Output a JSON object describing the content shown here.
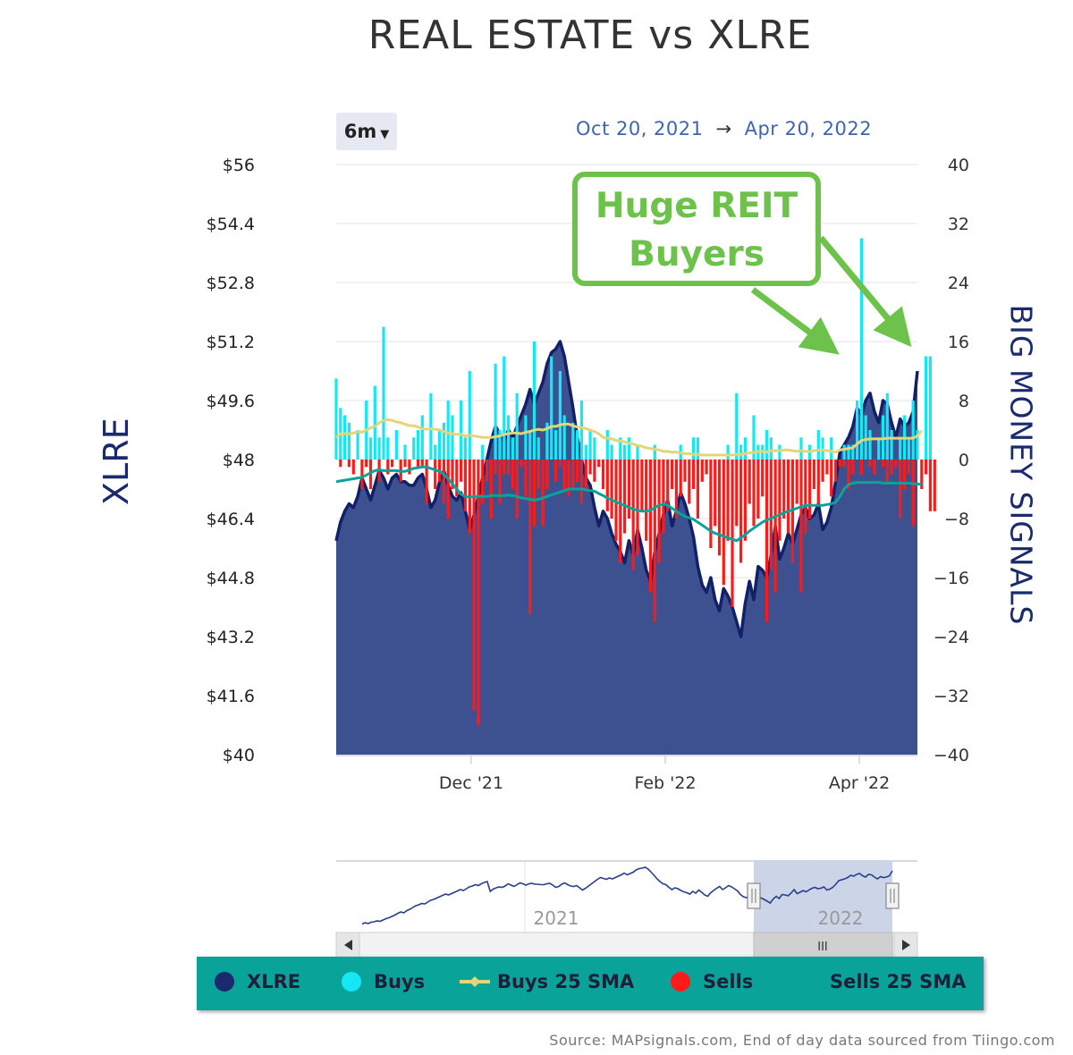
{
  "title": "REAL ESTATE vs XLRE",
  "range_selector": {
    "label": "6m"
  },
  "date_range": {
    "from": "Oct 20, 2021",
    "arrow": "→",
    "to": "Apr 20, 2022"
  },
  "callout": {
    "line1": "Huge REIT",
    "line2": "Buyers"
  },
  "navigator": {
    "year_labels": [
      "2021",
      "2022"
    ],
    "handle_glyph": "III"
  },
  "legend": [
    {
      "label": "XLRE",
      "color": "#1a2a6c"
    },
    {
      "label": "Buys",
      "color": "#14e8f5"
    },
    {
      "label": "Buys 25 SMA",
      "color": "#e2d57a"
    },
    {
      "label": "Sells",
      "color": "#ff1a1a"
    },
    {
      "label": "Sells 25 SMA",
      "color": "#0aa39a"
    }
  ],
  "source": "Source: MAPsignals.com, End of day data sourced from Tiingo.com",
  "chart_data": {
    "type": "area",
    "title": "REAL ESTATE vs XLRE",
    "left_axis": {
      "label": "XLRE",
      "ylim": [
        40,
        56
      ],
      "ticks": [
        "$56",
        "$54.4",
        "$52.8",
        "$51.2",
        "$49.6",
        "$48",
        "$46.4",
        "$44.8",
        "$43.2",
        "$41.6",
        "$40"
      ]
    },
    "right_axis": {
      "label": "BIG MONEY SIGNALS",
      "ylim": [
        -40,
        40
      ],
      "ticks": [
        "40",
        "32",
        "24",
        "16",
        "8",
        "0",
        "−8",
        "−16",
        "−24",
        "−32",
        "−40"
      ]
    },
    "x_ticks": [
      "Dec '21",
      "Feb '22",
      "Apr '22"
    ],
    "grid": true,
    "legend_position": "bottom",
    "series": [
      {
        "name": "XLRE",
        "axis": "left",
        "color": "#1a2a6c",
        "values": [
          45.8,
          46.3,
          46.6,
          46.8,
          46.7,
          47.0,
          47.5,
          47.2,
          46.9,
          47.3,
          47.7,
          47.5,
          47.2,
          47.5,
          47.6,
          47.4,
          47.4,
          47.3,
          47.3,
          47.5,
          47.6,
          47.2,
          46.7,
          46.9,
          47.4,
          47.7,
          47.3,
          47.0,
          46.9,
          47.1,
          46.6,
          46.1,
          46.5,
          47.0,
          47.5,
          48.0,
          48.5,
          48.9,
          48.7,
          48.5,
          48.8,
          48.6,
          48.9,
          49.2,
          49.5,
          49.9,
          49.5,
          49.8,
          50.1,
          50.6,
          50.9,
          51.0,
          51.2,
          50.8,
          50.1,
          49.4,
          48.6,
          48.0,
          47.5,
          47.3,
          46.7,
          46.2,
          46.6,
          46.4,
          46.0,
          45.7,
          45.5,
          45.2,
          45.8,
          45.4,
          46.1,
          45.6,
          45.0,
          44.7,
          45.5,
          46.0,
          46.5,
          46.9,
          46.2,
          46.6,
          47.1,
          46.8,
          46.4,
          45.9,
          45.1,
          44.6,
          44.4,
          44.8,
          44.2,
          43.9,
          44.5,
          44.3,
          44.0,
          43.6,
          43.2,
          44.1,
          44.7,
          44.2,
          45.1,
          45.0,
          44.8,
          45.4,
          46.2,
          45.3,
          45.6,
          46.0,
          45.7,
          46.1,
          46.5,
          46.7,
          46.4,
          46.5,
          46.8,
          46.1,
          46.3,
          46.7,
          47.4,
          48.2,
          48.4,
          48.6,
          48.9,
          49.4,
          49.2,
          49.6,
          49.8,
          49.3,
          49.0,
          49.6,
          49.5,
          49.0,
          48.6,
          49.1,
          48.9,
          49.0,
          49.3,
          50.4
        ]
      },
      {
        "name": "Buys",
        "axis": "right",
        "color": "#14e8f5",
        "values": [
          11,
          7,
          6,
          5,
          0,
          4,
          0,
          8,
          3,
          10,
          3,
          18,
          3,
          0,
          4,
          0,
          2,
          0,
          3,
          4,
          6,
          0,
          9,
          2,
          4,
          5,
          8,
          6,
          0,
          8,
          3,
          12,
          0,
          0,
          2,
          0,
          0,
          13,
          4,
          14,
          6,
          3,
          9,
          0,
          6,
          4,
          16,
          3,
          0,
          5,
          14,
          4,
          12,
          6,
          0,
          5,
          4,
          8,
          2,
          4,
          3,
          0,
          0,
          4,
          2,
          0,
          3,
          2,
          3,
          0,
          2,
          0,
          0,
          0,
          2,
          0,
          0,
          0,
          0,
          0,
          2,
          0,
          0,
          3,
          3,
          0,
          0,
          0,
          0,
          0,
          0,
          2,
          0,
          9,
          2,
          3,
          0,
          6,
          2,
          2,
          4,
          3,
          0,
          2,
          0,
          0,
          0,
          0,
          3,
          0,
          2,
          0,
          4,
          3,
          0,
          3,
          0,
          0,
          2,
          2,
          2,
          8,
          30,
          6,
          4,
          0,
          3,
          6,
          9,
          4,
          0,
          3,
          6,
          3,
          8,
          4,
          0,
          14,
          14
        ]
      },
      {
        "name": "Sells",
        "axis": "right",
        "color": "#ff1a1a",
        "values": [
          0,
          -1,
          0,
          -1,
          -2,
          0,
          -4,
          -1,
          -4,
          0,
          -3,
          0,
          -2,
          -1,
          0,
          -3,
          -1,
          -2,
          0,
          -1,
          -1,
          -6,
          0,
          -4,
          -3,
          -6,
          -8,
          -4,
          -5,
          -3,
          -7,
          -10,
          -34,
          -36,
          -6,
          -3,
          -8,
          -2,
          -6,
          -2,
          -2,
          -4,
          -8,
          -1,
          -5,
          -21,
          -9,
          -4,
          -9,
          -4,
          0,
          -3,
          -1,
          -4,
          -5,
          -4,
          -3,
          -6,
          -4,
          -2,
          -3,
          -1,
          -4,
          -7,
          -8,
          -11,
          -14,
          -10,
          -8,
          -15,
          -13,
          -7,
          -11,
          -18,
          -22,
          -14,
          -10,
          -7,
          -4,
          -8,
          -5,
          -3,
          -6,
          -4,
          -8,
          -3,
          -2,
          -12,
          -9,
          -13,
          -17,
          -11,
          -20,
          -9,
          -14,
          -11,
          -6,
          -9,
          -8,
          -5,
          -22,
          -15,
          -18,
          -11,
          -8,
          -10,
          -14,
          -6,
          -18,
          -10,
          -8,
          -4,
          -6,
          -3,
          -2,
          -5,
          -3,
          -1,
          -1,
          -4,
          -2,
          0,
          -2,
          0,
          -1,
          -2,
          0,
          -1,
          -3,
          -2,
          -1,
          -8,
          -4,
          -2,
          -9,
          0,
          -4,
          -2,
          -7,
          -7
        ]
      },
      {
        "name": "Buys 25 SMA",
        "axis": "right",
        "color": "#e2d57a",
        "values": [
          3.0,
          3.5,
          3.5,
          3.5,
          3.6,
          3.8,
          3.7,
          4.0,
          4.3,
          4.5,
          5.0,
          5.3,
          5.4,
          5.3,
          5.1,
          5.0,
          4.8,
          4.6,
          4.6,
          4.4,
          4.2,
          4.1,
          4.2,
          4.1,
          4.0,
          3.8,
          3.6,
          3.5,
          3.4,
          3.4,
          3.2,
          3.3,
          3.2,
          3.1,
          3.0,
          3.0,
          3.0,
          3.1,
          3.2,
          3.4,
          3.5,
          3.6,
          3.6,
          3.5,
          3.7,
          3.8,
          4.0,
          4.1,
          4.0,
          4.2,
          4.5,
          4.5,
          4.7,
          4.8,
          4.8,
          4.6,
          4.4,
          4.3,
          4.2,
          4.0,
          3.8,
          3.5,
          3.0,
          2.9,
          2.8,
          2.6,
          2.5,
          2.4,
          2.2,
          2.1,
          1.9,
          1.8,
          1.6,
          1.5,
          1.4,
          1.3,
          1.1,
          1.1,
          1.0,
          1.0,
          0.9,
          0.8,
          0.8,
          0.7,
          0.7,
          0.6,
          0.6,
          0.6,
          0.6,
          0.6,
          0.6,
          0.6,
          0.6,
          0.7,
          0.7,
          0.8,
          0.9,
          1.0,
          1.1,
          1.1,
          1.0,
          1.2,
          1.2,
          1.2,
          1.3,
          1.3,
          1.2,
          1.1,
          1.2,
          1.1,
          1.1,
          1.2,
          1.3,
          1.3,
          1.2,
          1.1,
          1.0,
          1.3,
          1.4,
          1.5,
          1.6,
          2.1,
          2.6,
          2.7,
          2.8,
          2.8,
          2.8,
          2.8,
          2.9,
          2.9,
          2.9,
          2.9,
          2.9,
          2.9,
          2.9,
          3.2,
          3.9
        ]
      },
      {
        "name": "Sells 25 SMA",
        "axis": "right",
        "color": "#0aa39a",
        "values": [
          -3.0,
          -2.9,
          -2.8,
          -2.7,
          -2.6,
          -2.5,
          -2.4,
          -2.1,
          -1.8,
          -1.5,
          -1.4,
          -1.5,
          -1.5,
          -1.5,
          -1.5,
          -1.6,
          -1.6,
          -1.4,
          -1.2,
          -1.1,
          -1.0,
          -1.0,
          -1.2,
          -1.4,
          -1.6,
          -2.0,
          -2.6,
          -3.3,
          -4.0,
          -4.7,
          -5.0,
          -5.1,
          -5.0,
          -5.0,
          -5.0,
          -5.0,
          -4.9,
          -4.9,
          -4.9,
          -4.9,
          -4.8,
          -4.9,
          -5.0,
          -5.2,
          -5.3,
          -5.4,
          -5.5,
          -5.4,
          -5.2,
          -5.0,
          -4.8,
          -4.6,
          -4.4,
          -4.2,
          -4.0,
          -4.0,
          -4.0,
          -4.0,
          -4.1,
          -4.2,
          -4.3,
          -4.6,
          -4.9,
          -5.2,
          -5.5,
          -5.7,
          -6.0,
          -6.2,
          -6.5,
          -6.7,
          -6.9,
          -7.0,
          -7.0,
          -6.9,
          -6.5,
          -6.2,
          -6.0,
          -6.2,
          -6.6,
          -7.0,
          -7.4,
          -7.7,
          -7.9,
          -8.1,
          -8.5,
          -8.9,
          -9.3,
          -9.7,
          -10.0,
          -10.2,
          -10.4,
          -10.6,
          -10.8,
          -11.0,
          -10.6,
          -10.2,
          -9.7,
          -9.3,
          -8.9,
          -8.5,
          -8.2,
          -8.0,
          -7.7,
          -7.5,
          -7.2,
          -7.0,
          -6.8,
          -6.6,
          -6.4,
          -6.2,
          -6.2,
          -6.2,
          -6.2,
          -6.2,
          -6.1,
          -6.0,
          -5.8,
          -5.0,
          -4.0,
          -3.4,
          -3.2,
          -3.1,
          -3.1,
          -3.1,
          -3.1,
          -3.1,
          -3.1,
          -3.2,
          -3.2,
          -3.2,
          -3.2,
          -3.2,
          -3.2,
          -3.2,
          -3.3,
          -3.3,
          -3.4
        ]
      }
    ]
  }
}
